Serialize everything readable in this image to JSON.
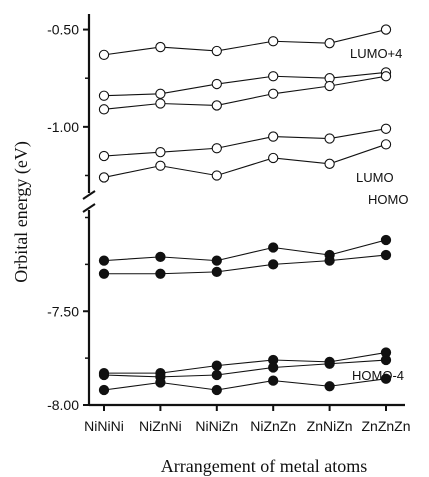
{
  "chart_data": {
    "type": "line",
    "title": "",
    "xlabel": "Arrangement of metal atoms",
    "ylabel": "Orbital energy (eV)",
    "categories": [
      "NiNiNi",
      "NiZnNi",
      "NiNiZn",
      "NiZnZn",
      "ZnNiZn",
      "ZnZnZn"
    ],
    "upper_ylim": [
      -1.34,
      -0.42
    ],
    "upper_yticks": [
      -0.5,
      -1.0
    ],
    "upper_ytick_labels": [
      "-0.50",
      "-1.00"
    ],
    "lower_ylim": [
      -8.0,
      -6.96
    ],
    "lower_yticks": [
      -7.5,
      -8.0
    ],
    "lower_ytick_labels": [
      "-7.50",
      "-8.00"
    ],
    "axis_break": true,
    "grid": false,
    "unoccupied_series": [
      {
        "values": [
          -0.63,
          -0.59,
          -0.61,
          -0.56,
          -0.57,
          -0.5
        ]
      },
      {
        "values": [
          -0.84,
          -0.83,
          -0.78,
          -0.74,
          -0.75,
          -0.72
        ]
      },
      {
        "values": [
          -0.91,
          -0.88,
          -0.89,
          -0.83,
          -0.79,
          -0.74
        ]
      },
      {
        "values": [
          -1.15,
          -1.13,
          -1.11,
          -1.05,
          -1.06,
          -1.01
        ]
      },
      {
        "values": [
          -1.26,
          -1.2,
          -1.25,
          -1.16,
          -1.19,
          -1.09
        ]
      }
    ],
    "occupied_series": [
      {
        "values": [
          -7.23,
          -7.21,
          -7.23,
          -7.16,
          -7.2,
          -7.12
        ]
      },
      {
        "values": [
          -7.3,
          -7.3,
          -7.29,
          -7.25,
          -7.23,
          -7.2
        ]
      },
      {
        "values": [
          -7.83,
          -7.83,
          -7.79,
          -7.76,
          -7.77,
          -7.72
        ]
      },
      {
        "values": [
          -7.84,
          -7.85,
          -7.84,
          -7.8,
          -7.78,
          -7.76
        ]
      },
      {
        "values": [
          -7.92,
          -7.88,
          -7.92,
          -7.87,
          -7.9,
          -7.86
        ]
      }
    ],
    "annotations": [
      {
        "text": "LUMO+4"
      },
      {
        "text": "LUMO"
      },
      {
        "text": "HOMO"
      },
      {
        "text": "HOMO-4"
      }
    ]
  }
}
